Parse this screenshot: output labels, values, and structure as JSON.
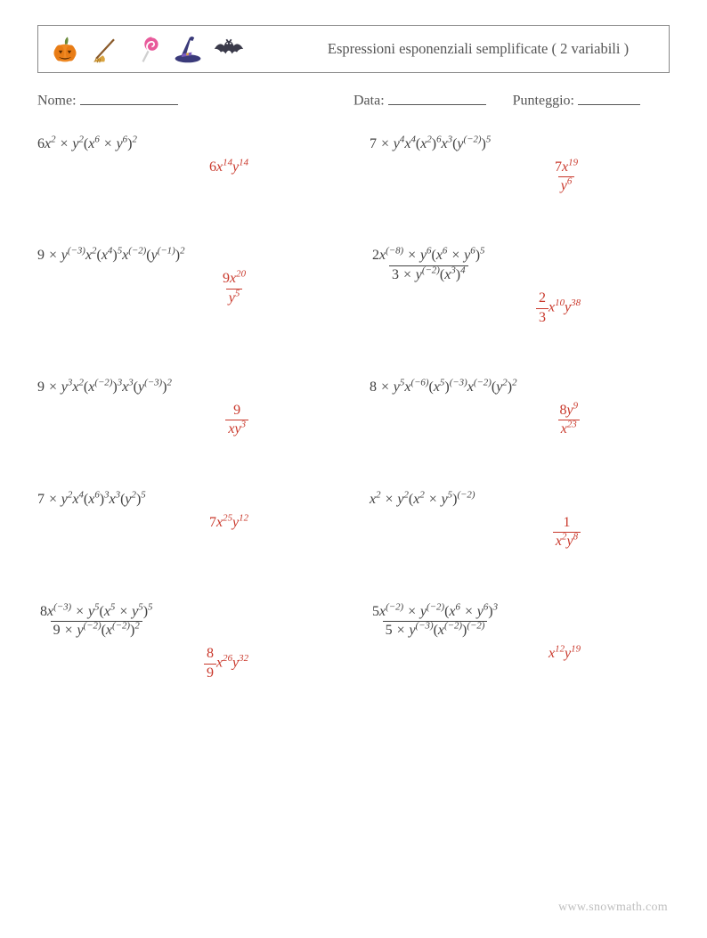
{
  "colors": {
    "text": "#404040",
    "answer": "#c9372a",
    "border": "#888888",
    "footer": "#bfbfbf",
    "background": "#ffffff",
    "pumpkin_body": "#f08a24",
    "pumpkin_stem": "#6a8a3a",
    "broom_handle": "#8a5a2a",
    "broom_brush": "#d9a441",
    "lollipop_stick": "#cfcfcf",
    "lollipop_a": "#e85a9b",
    "lollipop_b": "#ffffff",
    "hat_body": "#3a3a7a",
    "hat_band": "#7a5bbd",
    "bat_body": "#3a3a4a"
  },
  "typography": {
    "base_font": "Georgia, 'Times New Roman', serif",
    "base_size_pt": 12,
    "title_size_pt": 12,
    "answer_color": "#c9372a"
  },
  "header": {
    "title": "Espressioni esponenziali semplificate ( 2 variabili )",
    "icons": [
      "pumpkin",
      "broom",
      "lollipop",
      "witch-hat",
      "bat"
    ]
  },
  "meta": {
    "name_label": "Nome:",
    "date_label": "Data:",
    "score_label": "Punteggio:"
  },
  "footer": "www.snowmath.com",
  "problems": [
    {
      "expr_html": "<span class='n'>6</span>x<sup>2</sup> × y<sup>2</sup><span class='n'>(</span>x<sup>6</sup> × y<sup>6</sup><span class='n'>)</span><sup>2</sup>",
      "ans_html": "<span class='n'>6</span>x<sup>14</sup>y<sup>14</sup>"
    },
    {
      "expr_html": "<span class='n'>7</span> × y<sup>4</sup>x<sup>4</sup><span class='n'>(</span>x<sup>2</sup><span class='n'>)</span><sup>6</sup>x<sup>3</sup><span class='n'>(</span>y<sup>(−2)</sup><span class='n'>)</span><sup>5</sup>",
      "ans_html": "<span class='frac'><span class='num'><span class='n'>7</span>x<sup>19</sup></span><span class='den'>y<sup>6</sup></span></span>"
    },
    {
      "expr_html": "<span class='n'>9</span> × y<sup>(−3)</sup>x<sup>2</sup><span class='n'>(</span>x<sup>4</sup><span class='n'>)</span><sup>5</sup>x<sup>(−2)</sup><span class='n'>(</span>y<sup>(−1)</sup><span class='n'>)</span><sup>2</sup>",
      "ans_html": "<span class='frac'><span class='num'><span class='n'>9</span>x<sup>20</sup></span><span class='den'>y<sup>5</sup></span></span>"
    },
    {
      "expr_html": "<span class='frac'><span class='num'><span class='n'>2</span>x<sup>(−8)</sup> × y<sup>6</sup><span class='n'>(</span>x<sup>6</sup> × y<sup>6</sup><span class='n'>)</span><sup>5</sup></span><span class='den'><span class='n'>3</span> × y<sup>(−2)</sup><span class='n'>(</span>x<sup>3</sup><span class='n'>)</span><sup>4</sup></span></span>",
      "ans_html": "<span class='frac'><span class='num'><span class='n'>2</span></span><span class='den'><span class='n'>3</span></span></span>x<sup>10</sup>y<sup>38</sup>"
    },
    {
      "expr_html": "<span class='n'>9</span> × y<sup>3</sup>x<sup>2</sup><span class='n'>(</span>x<sup>(−2)</sup><span class='n'>)</span><sup>3</sup>x<sup>3</sup><span class='n'>(</span>y<sup>(−3)</sup><span class='n'>)</span><sup>2</sup>",
      "ans_html": "<span class='frac'><span class='num'><span class='n'>9</span></span><span class='den'>xy<sup>3</sup></span></span>"
    },
    {
      "expr_html": "<span class='n'>8</span> × y<sup>5</sup>x<sup>(−6)</sup><span class='n'>(</span>x<sup>5</sup><span class='n'>)</span><sup>(−3)</sup>x<sup>(−2)</sup><span class='n'>(</span>y<sup>2</sup><span class='n'>)</span><sup>2</sup>",
      "ans_html": "<span class='frac'><span class='num'><span class='n'>8</span>y<sup>9</sup></span><span class='den'>x<sup>23</sup></span></span>"
    },
    {
      "expr_html": "<span class='n'>7</span> × y<sup>2</sup>x<sup>4</sup><span class='n'>(</span>x<sup>6</sup><span class='n'>)</span><sup>3</sup>x<sup>3</sup><span class='n'>(</span>y<sup>2</sup><span class='n'>)</span><sup>5</sup>",
      "ans_html": "<span class='n'>7</span>x<sup>25</sup>y<sup>12</sup>"
    },
    {
      "expr_html": "x<sup>2</sup> × y<sup>2</sup><span class='n'>(</span>x<sup>2</sup> × y<sup>5</sup><span class='n'>)</span><sup>(−2)</sup>",
      "ans_html": "<span class='frac'><span class='num'><span class='n'>1</span></span><span class='den'>x<sup>2</sup>y<sup>8</sup></span></span>"
    },
    {
      "expr_html": "<span class='frac'><span class='num'><span class='n'>8</span>x<sup>(−3)</sup> × y<sup>5</sup><span class='n'>(</span>x<sup>5</sup> × y<sup>5</sup><span class='n'>)</span><sup>5</sup></span><span class='den'><span class='n'>9</span> × y<sup>(−2)</sup><span class='n'>(</span>x<sup>(−2)</sup><span class='n'>)</span><sup>2</sup></span></span>",
      "ans_html": "<span class='frac'><span class='num'><span class='n'>8</span></span><span class='den'><span class='n'>9</span></span></span>x<sup>26</sup>y<sup>32</sup>"
    },
    {
      "expr_html": "<span class='frac'><span class='num'><span class='n'>5</span>x<sup>(−2)</sup> × y<sup>(−2)</sup><span class='n'>(</span>x<sup>6</sup> × y<sup>6</sup><span class='n'>)</span><sup>3</sup></span><span class='den'><span class='n'>5</span> × y<sup>(−3)</sup><span class='n'>(</span>x<sup>(−2)</sup><span class='n'>)</span><sup>(−2)</sup></span></span>",
      "ans_html": "x<sup>12</sup>y<sup>19</sup>"
    }
  ]
}
